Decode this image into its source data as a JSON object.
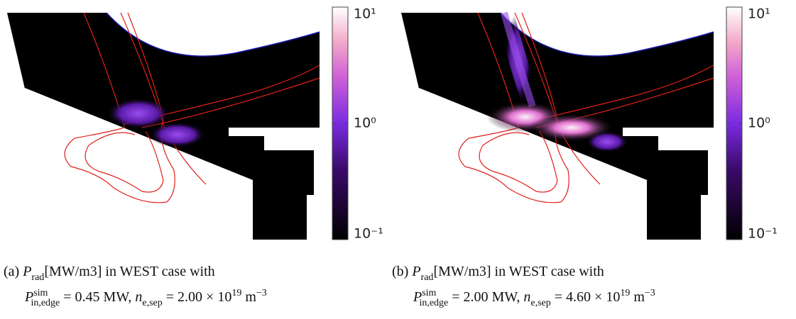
{
  "panels": [
    {
      "colorbar": {
        "log": true,
        "lim": [
          0.1,
          10
        ],
        "ticks": [
          {
            "value": 0.1,
            "label": "10⁻¹"
          },
          {
            "value": 1,
            "label": "10⁰"
          },
          {
            "value": 10,
            "label": "10¹"
          }
        ]
      },
      "caption": {
        "label": "(a)",
        "quantity": "P",
        "quantity_sub": "rad",
        "line1_rest": "[MW/m3] in WEST case with",
        "power_symbol": "P",
        "power_sup": "sim",
        "power_sub": "in,edge",
        "power_value": " = 0.45 MW, ",
        "density_symbol": "n",
        "density_sub": "e,sep",
        "density_value": " = 2.00 × 10",
        "density_exp": "19",
        "unit": " m",
        "unit_exp": "−3"
      }
    },
    {
      "colorbar": {
        "log": true,
        "lim": [
          0.1,
          10
        ],
        "ticks": [
          {
            "value": 0.1,
            "label": "10⁻¹"
          },
          {
            "value": 1,
            "label": "10⁰"
          },
          {
            "value": 10,
            "label": "10¹"
          }
        ]
      },
      "caption": {
        "label": "(b)",
        "quantity": "P",
        "quantity_sub": "rad",
        "line1_rest": "[MW/m3] in WEST case with",
        "power_symbol": "P",
        "power_sup": "sim",
        "power_sub": "in,edge",
        "power_value": " = 2.00 MW, ",
        "density_symbol": "n",
        "density_sub": "e,sep",
        "density_value": " = 4.60 × 10",
        "density_exp": "19",
        "unit": " m",
        "unit_exp": "−3"
      }
    }
  ]
}
